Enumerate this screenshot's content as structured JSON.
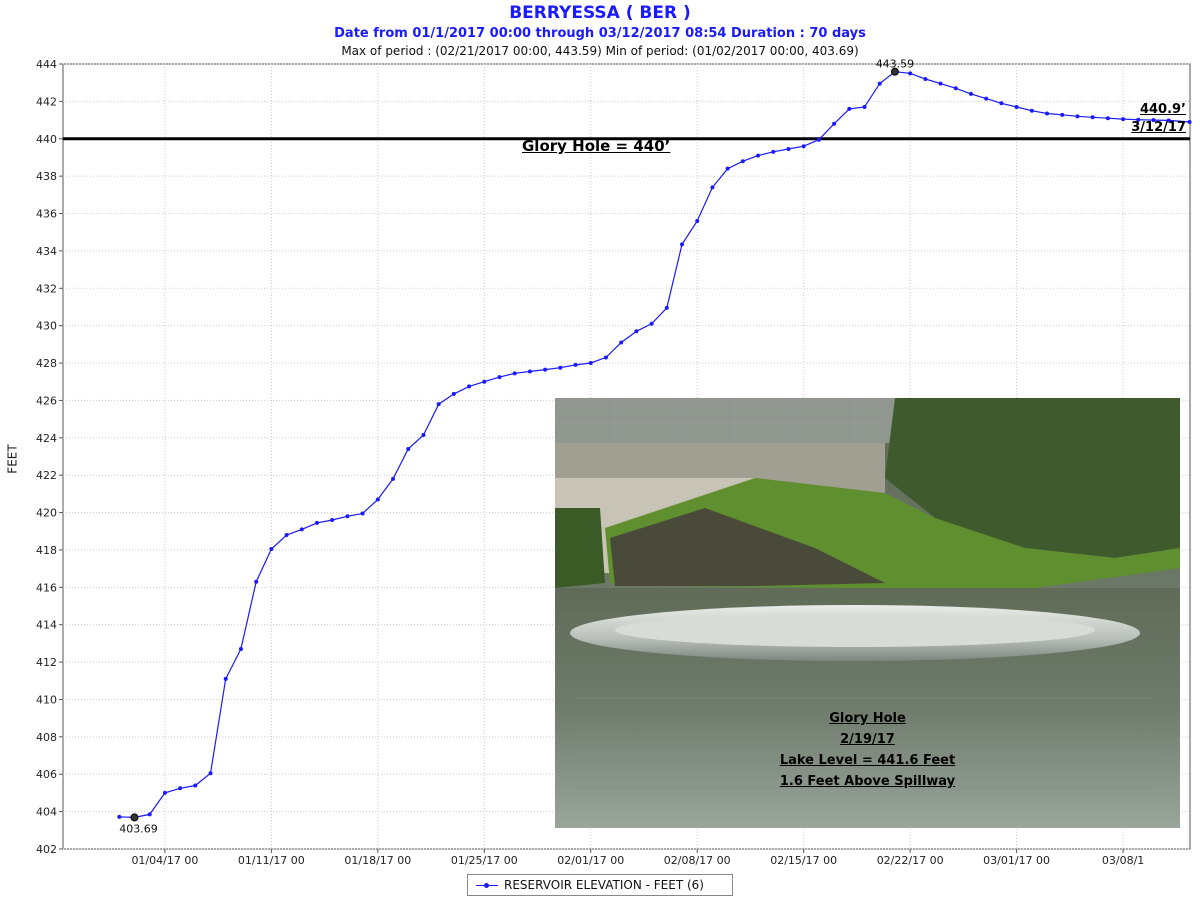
{
  "title": "BERRYESSA ( BER )",
  "subtitle": "Date from 01/1/2017 00:00 through 03/12/2017 08:54 Duration : 70 days",
  "stats": "Max of period : (02/21/2017 00:00, 443.59)  Min of period: (01/02/2017 00:00,  403.69)",
  "legend_label": "RESERVOIR ELEVATION - FEET (6)",
  "glory_hole_label": "Glory Hole = 440’",
  "current": {
    "value": "440.9’",
    "date": "3/12/17"
  },
  "photo_caption": {
    "line1": "Glory Hole",
    "line2": "2/19/17",
    "line3": "Lake Level = 441.6 Feet",
    "line4": "1.6 Feet Above Spillway"
  },
  "colors": {
    "series": "#1a1aff",
    "reference": "#000000",
    "grid": "#cccccc",
    "title": "#1a1aff"
  },
  "chart_data": {
    "type": "line",
    "ylabel": "FEET",
    "ylim": [
      402,
      444
    ],
    "yticks": [
      "402",
      "404",
      "406",
      "408",
      "410",
      "412",
      "414",
      "416",
      "418",
      "420",
      "422",
      "424",
      "426",
      "428",
      "430",
      "432",
      "434",
      "436",
      "438",
      "440",
      "442",
      "444"
    ],
    "xticks": [
      {
        "day": 3,
        "label": "01/04/17 00"
      },
      {
        "day": 10,
        "label": "01/11/17 00"
      },
      {
        "day": 17,
        "label": "01/18/17 00"
      },
      {
        "day": 24,
        "label": "01/25/17 00"
      },
      {
        "day": 31,
        "label": "02/01/17 00"
      },
      {
        "day": 38,
        "label": "02/08/17 00"
      },
      {
        "day": 45,
        "label": "02/15/17 00"
      },
      {
        "day": 52,
        "label": "02/22/17 00"
      },
      {
        "day": 59,
        "label": "03/01/17 00"
      },
      {
        "day": 66,
        "label": "03/08/1"
      }
    ],
    "reference_line": {
      "y": 440,
      "label": "Glory Hole = 440’"
    },
    "grid": true,
    "legend_position": "bottom-center",
    "max_point": {
      "day": 51,
      "value": 443.59,
      "label": "443.59"
    },
    "min_point": {
      "day": 1,
      "value": 403.69,
      "label": "403.69"
    },
    "series": [
      {
        "name": "RESERVOIR ELEVATION - FEET (6)",
        "days": [
          0,
          1,
          2,
          3,
          4,
          5,
          6,
          7,
          8,
          9,
          10,
          11,
          12,
          13,
          14,
          15,
          16,
          17,
          18,
          19,
          20,
          21,
          22,
          23,
          24,
          25,
          26,
          27,
          28,
          29,
          30,
          31,
          32,
          33,
          34,
          35,
          36,
          37,
          38,
          39,
          40,
          41,
          42,
          43,
          44,
          45,
          46,
          47,
          48,
          49,
          50,
          51,
          52,
          53,
          54,
          55,
          56,
          57,
          58,
          59,
          60,
          61,
          62,
          63,
          64,
          65,
          66,
          67,
          68,
          69,
          70.37
        ],
        "values": [
          403.72,
          403.69,
          403.85,
          405.0,
          405.25,
          405.4,
          406.05,
          411.1,
          412.7,
          416.3,
          418.05,
          418.8,
          419.1,
          419.45,
          419.6,
          419.8,
          419.95,
          420.7,
          421.8,
          423.4,
          424.15,
          425.8,
          426.35,
          426.75,
          427.0,
          427.25,
          427.45,
          427.55,
          427.65,
          427.75,
          427.9,
          428.0,
          428.3,
          429.1,
          429.7,
          430.1,
          430.95,
          434.35,
          435.6,
          437.4,
          438.4,
          438.8,
          439.1,
          439.3,
          439.45,
          439.6,
          439.95,
          440.8,
          441.6,
          441.7,
          442.95,
          443.59,
          443.5,
          443.2,
          442.95,
          442.7,
          442.4,
          442.15,
          441.9,
          441.7,
          441.5,
          441.35,
          441.28,
          441.2,
          441.15,
          441.1,
          441.05,
          441.02,
          441.0,
          440.98,
          440.9
        ]
      }
    ]
  }
}
